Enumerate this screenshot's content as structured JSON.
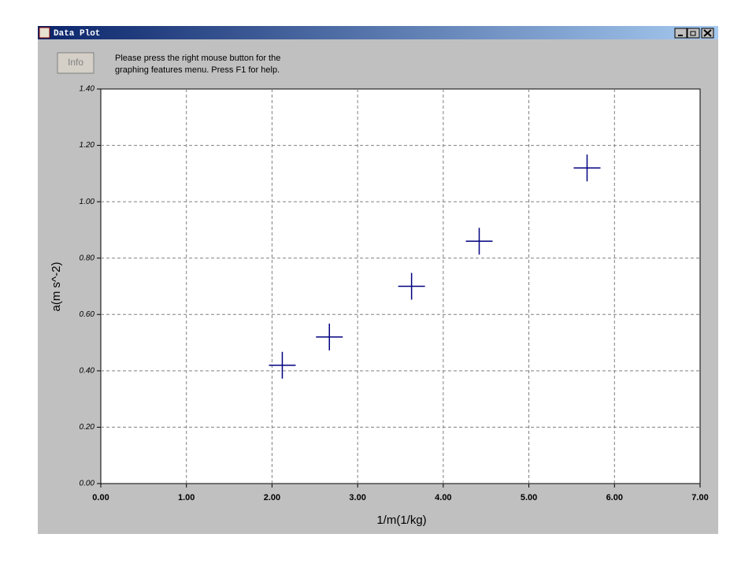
{
  "window": {
    "title": "Data Plot",
    "info_button": "Info",
    "help_lines": [
      "Please press the right mouse button for the",
      "graphing features menu.  Press F1 for help."
    ]
  },
  "chart_data": {
    "type": "scatter",
    "xlabel": "1/m(1/kg)",
    "ylabel": "a(m s^-2)",
    "x": [
      2.12,
      2.67,
      3.63,
      4.42,
      5.68
    ],
    "series": [
      {
        "color": "#000080",
        "values": [
          0.42,
          0.52,
          0.7,
          0.86,
          1.12
        ]
      }
    ],
    "xlim": [
      0,
      7
    ],
    "ylim": [
      0,
      1.4
    ],
    "xticks": [
      {
        "value": 0,
        "label": "0.00"
      },
      {
        "value": 1,
        "label": "1.00"
      },
      {
        "value": 2,
        "label": "2.00"
      },
      {
        "value": 3,
        "label": "3.00"
      },
      {
        "value": 4,
        "label": "4.00"
      },
      {
        "value": 5,
        "label": "5.00"
      },
      {
        "value": 6,
        "label": "6.00"
      },
      {
        "value": 7,
        "label": "7.00"
      }
    ],
    "yticks": [
      {
        "value": 0,
        "label": "0.00"
      },
      {
        "value": 0.2,
        "label": "0.20"
      },
      {
        "value": 0.4,
        "label": "0.40"
      },
      {
        "value": 0.6,
        "label": "0.60"
      },
      {
        "value": 0.8,
        "label": "0.80"
      },
      {
        "value": 1.0,
        "label": "1.00"
      },
      {
        "value": 1.2,
        "label": "1.20"
      },
      {
        "value": 1.4,
        "label": "1.40"
      }
    ],
    "grid": true
  }
}
